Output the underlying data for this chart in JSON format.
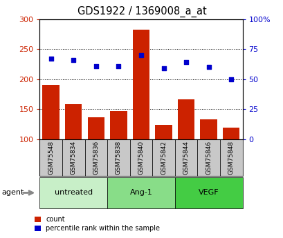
{
  "title": "GDS1922 / 1369008_a_at",
  "categories": [
    "GSM75548",
    "GSM75834",
    "GSM75836",
    "GSM75838",
    "GSM75840",
    "GSM75842",
    "GSM75844",
    "GSM75846",
    "GSM75848"
  ],
  "bar_values": [
    190,
    158,
    136,
    147,
    282,
    124,
    166,
    133,
    119
  ],
  "dot_values": [
    67,
    66,
    61,
    61,
    70,
    59,
    64,
    60,
    50
  ],
  "bar_color": "#cc2200",
  "dot_color": "#0000cc",
  "ylim_left": [
    100,
    300
  ],
  "ylim_right": [
    0,
    100
  ],
  "yticks_left": [
    100,
    150,
    200,
    250,
    300
  ],
  "yticks_right": [
    0,
    25,
    50,
    75,
    100
  ],
  "ytick_labels_left": [
    "100",
    "150",
    "200",
    "250",
    "300"
  ],
  "ytick_labels_right": [
    "0",
    "25",
    "50",
    "75",
    "100%"
  ],
  "groups": [
    {
      "label": "untreated",
      "start": 0,
      "end": 3,
      "color": "#c8efc8"
    },
    {
      "label": "Ang-1",
      "start": 3,
      "end": 6,
      "color": "#88dd88"
    },
    {
      "label": "VEGF",
      "start": 6,
      "end": 9,
      "color": "#44cc44"
    }
  ],
  "agent_label": "agent",
  "legend": [
    {
      "label": "count",
      "color": "#cc2200"
    },
    {
      "label": "percentile rank within the sample",
      "color": "#0000cc"
    }
  ],
  "tick_area_color": "#c8c8c8",
  "plot_border_color": "#000000",
  "grid_linestyle": "dotted"
}
